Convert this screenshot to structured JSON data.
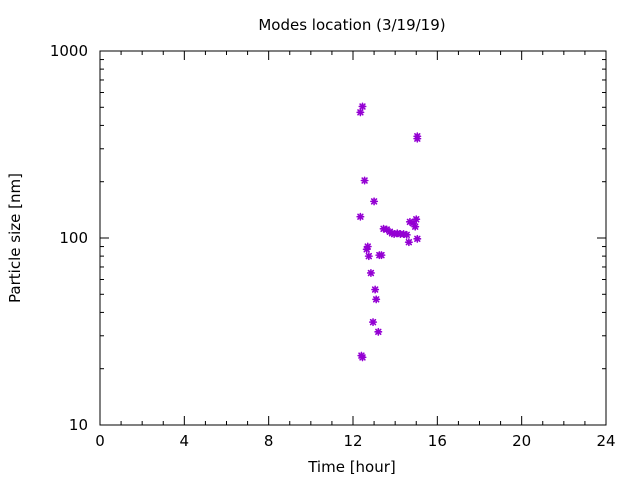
{
  "chart_data": {
    "type": "scatter",
    "title": "Modes location (3/19/19)",
    "xlabel": "Time [hour]",
    "ylabel": "Particle size [nm]",
    "xlim": [
      0,
      24
    ],
    "ylim": [
      10,
      1000
    ],
    "yscale": "log",
    "grid": false,
    "x_ticks": [
      0,
      4,
      8,
      12,
      16,
      20,
      24
    ],
    "y_ticks": [
      10,
      100,
      1000
    ],
    "marker_color": "#9400D3",
    "points": [
      {
        "x": 12.35,
        "y": 470
      },
      {
        "x": 12.45,
        "y": 505
      },
      {
        "x": 12.35,
        "y": 130
      },
      {
        "x": 12.55,
        "y": 203
      },
      {
        "x": 12.4,
        "y": 23.5
      },
      {
        "x": 12.45,
        "y": 23
      },
      {
        "x": 12.65,
        "y": 87
      },
      {
        "x": 12.7,
        "y": 90
      },
      {
        "x": 12.75,
        "y": 80
      },
      {
        "x": 12.85,
        "y": 65
      },
      {
        "x": 12.95,
        "y": 35.5
      },
      {
        "x": 13.0,
        "y": 157
      },
      {
        "x": 13.05,
        "y": 53
      },
      {
        "x": 13.1,
        "y": 47
      },
      {
        "x": 13.2,
        "y": 31.5
      },
      {
        "x": 13.25,
        "y": 81
      },
      {
        "x": 13.35,
        "y": 81
      },
      {
        "x": 13.45,
        "y": 112
      },
      {
        "x": 13.6,
        "y": 111
      },
      {
        "x": 13.75,
        "y": 108
      },
      {
        "x": 13.85,
        "y": 106
      },
      {
        "x": 13.95,
        "y": 105
      },
      {
        "x": 14.1,
        "y": 106
      },
      {
        "x": 14.25,
        "y": 105
      },
      {
        "x": 14.4,
        "y": 105
      },
      {
        "x": 14.55,
        "y": 104
      },
      {
        "x": 14.65,
        "y": 95
      },
      {
        "x": 14.7,
        "y": 122
      },
      {
        "x": 14.85,
        "y": 120
      },
      {
        "x": 14.95,
        "y": 115
      },
      {
        "x": 15.0,
        "y": 126
      },
      {
        "x": 15.05,
        "y": 99
      },
      {
        "x": 15.05,
        "y": 340
      },
      {
        "x": 15.05,
        "y": 350
      }
    ]
  }
}
